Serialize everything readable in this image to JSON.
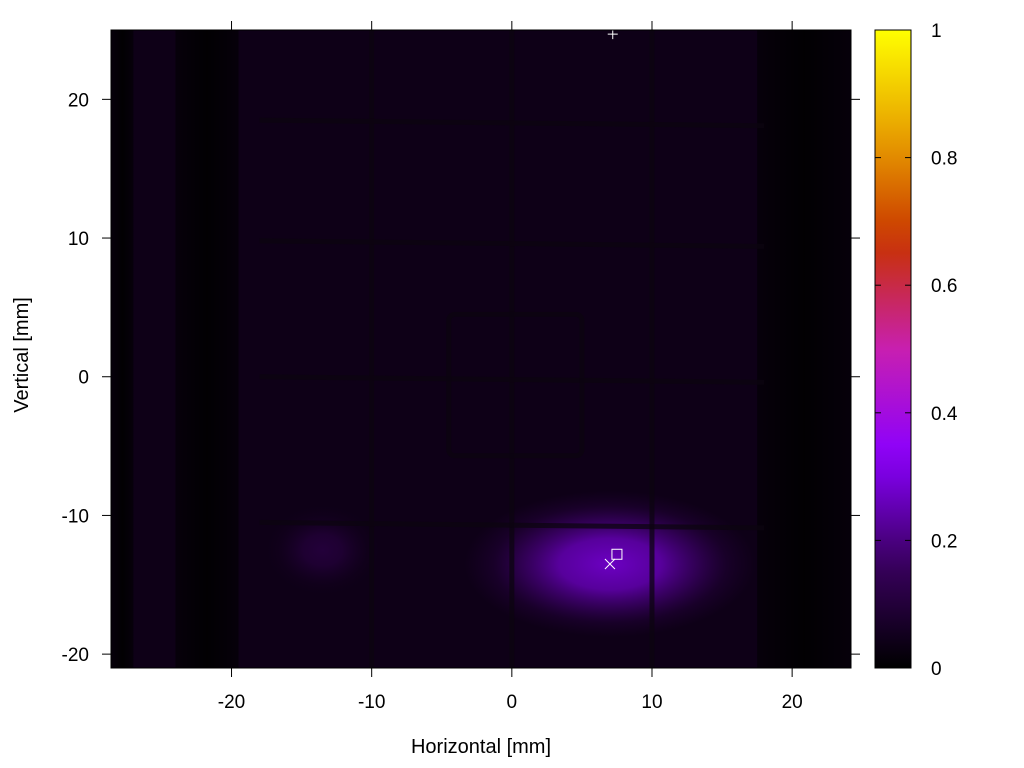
{
  "chart_data": {
    "type": "heatmap",
    "title": "",
    "xlabel": "Horizontal [mm]",
    "ylabel": "Vertical [mm]",
    "xlim": [
      -28.6,
      24.2
    ],
    "ylim": [
      -21,
      25
    ],
    "x_ticks": [
      -20,
      -10,
      0,
      10,
      20
    ],
    "y_ticks": [
      -20,
      -10,
      0,
      10,
      20
    ],
    "colorbar": {
      "range": [
        0,
        1
      ],
      "ticks": [
        0,
        0.2,
        0.4,
        0.6,
        0.8,
        1
      ],
      "tick_labels": [
        "0",
        "0.2",
        "0.4",
        "0.6",
        "0.8",
        "1"
      ],
      "colormap": [
        "#000000",
        "#3a0060",
        "#8a00ff",
        "#c81fb0",
        "#c83200",
        "#e8a000",
        "#ffff00"
      ]
    },
    "background_level": 0.04,
    "hot_spots": [
      {
        "x": 7,
        "y": -13.5,
        "level": 0.27,
        "sx": 6.5,
        "sy": 3.3
      },
      {
        "x": -13.5,
        "y": -12.5,
        "level": 0.1,
        "sx": 2.5,
        "sy": 2
      }
    ],
    "grid_lines_vertical_x": [
      -10,
      0,
      10
    ],
    "grid_lines_horizontal_y": [
      18.5,
      9.8,
      0,
      -10.5
    ],
    "dark_bands_x": [
      [
        -28.6,
        -27
      ],
      [
        -24,
        -19.5
      ],
      [
        17.5,
        24.2
      ]
    ],
    "inner_square": {
      "x": [
        -4.5,
        5
      ],
      "y": [
        -5.7,
        4.5
      ]
    },
    "markers": [
      {
        "symbol": "+",
        "x": 7.2,
        "y": 24.7
      },
      {
        "symbol": "square",
        "x": 7.5,
        "y": -12.8
      },
      {
        "symbol": "x",
        "x": 7,
        "y": -13.5
      }
    ]
  }
}
